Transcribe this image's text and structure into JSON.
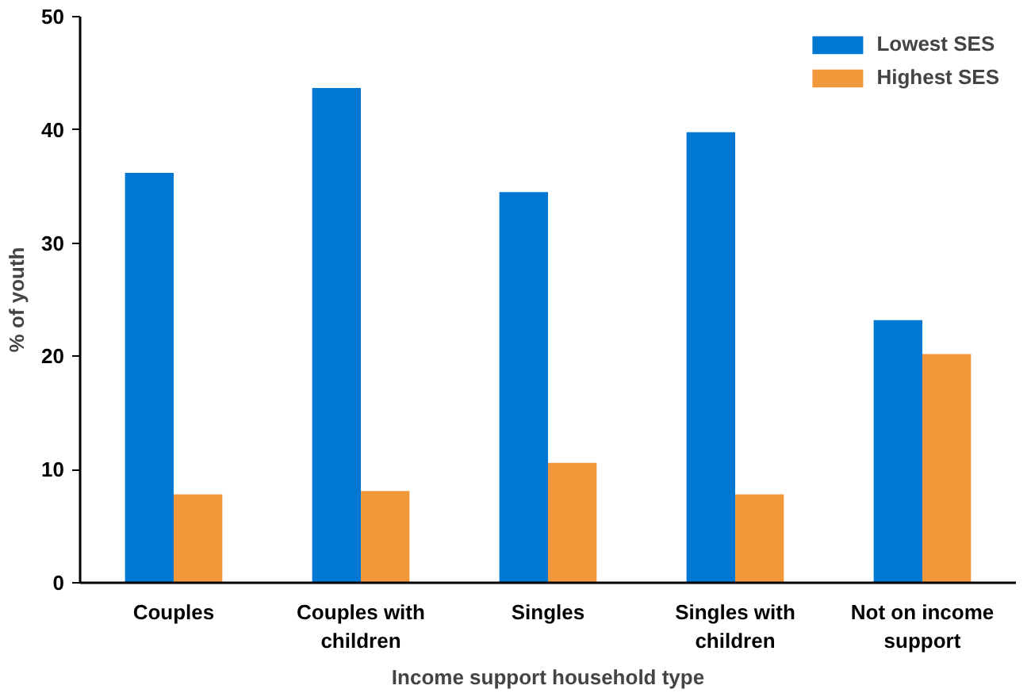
{
  "chart_data": {
    "type": "bar",
    "xlabel": "Income support household type",
    "ylabel": "% of youth",
    "categories": [
      "Couples",
      "Couples with children",
      "Singles",
      "Singles with children",
      "Not on income support"
    ],
    "series": [
      {
        "name": "Lowest SES",
        "color": "#0077d0",
        "values": [
          36.2,
          43.7,
          34.5,
          39.8,
          23.2
        ]
      },
      {
        "name": "Highest SES",
        "color": "#f0983a",
        "values": [
          7.8,
          8.1,
          10.6,
          7.8,
          20.2
        ]
      }
    ],
    "ylim": [
      0,
      50
    ],
    "yticks": [
      0,
      10,
      20,
      30,
      40,
      50
    ],
    "grid": false,
    "legend": "top right"
  }
}
